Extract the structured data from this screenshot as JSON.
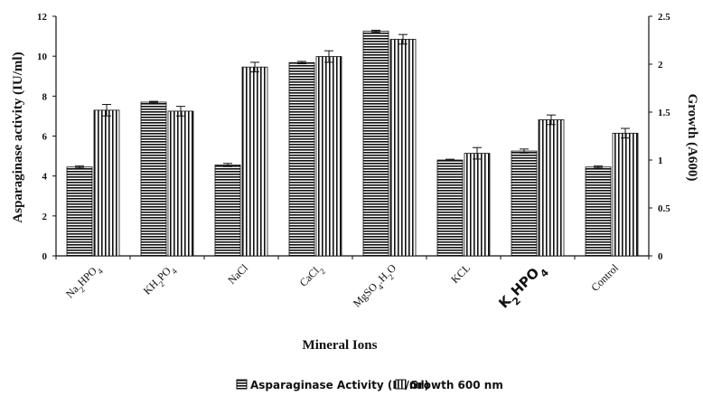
{
  "chart_data": {
    "type": "bar",
    "xlabel": "Mineral Ions",
    "ylabel": "Asparaginase activity (IU/ml)",
    "y2label": "Growth (A600)",
    "categories": [
      {
        "base": "Na",
        "sub1": "2",
        "mid": "HPO",
        "sub2": "4",
        "full": "Na2HPO4"
      },
      {
        "base": "KH",
        "sub1": "2",
        "mid": "PO",
        "sub2": "4",
        "full": "KH2PO4"
      },
      {
        "base": "NaCl",
        "sub1": "",
        "mid": "",
        "sub2": "",
        "full": "NaCl"
      },
      {
        "base": "CaCl",
        "sub1": "2",
        "mid": "",
        "sub2": "",
        "full": "CaCl2"
      },
      {
        "base": "MgSO",
        "sub1": "4",
        "mid": ".H",
        "sub2": "2",
        "tail": "O",
        "full": "MgSO4.H2O"
      },
      {
        "base": "KCL",
        "sub1": "",
        "mid": "",
        "sub2": "",
        "full": "KCL"
      },
      {
        "base": "K",
        "sub1": "2",
        "mid": "HPO",
        "sub2": "4",
        "full": "K2HPO4",
        "bold": true
      },
      {
        "base": "Control",
        "sub1": "",
        "mid": "",
        "sub2": "",
        "full": "Control"
      }
    ],
    "series": [
      {
        "name": "Asparaginase Activity (IU/ml)",
        "axis": "left",
        "pattern": "horizontal-stripes",
        "values": [
          4.45,
          7.7,
          4.55,
          9.68,
          11.25,
          4.8,
          5.25,
          4.45
        ],
        "errors": [
          0.05,
          0.04,
          0.08,
          0.06,
          0.05,
          0.04,
          0.1,
          0.05
        ]
      },
      {
        "name": "Growth 600 nm",
        "axis": "right",
        "pattern": "vertical-stripes",
        "values": [
          1.52,
          1.51,
          1.97,
          2.08,
          2.26,
          1.07,
          1.42,
          1.28
        ],
        "errors": [
          0.06,
          0.05,
          0.05,
          0.06,
          0.05,
          0.06,
          0.05,
          0.05
        ]
      }
    ],
    "ylim": [
      0,
      12
    ],
    "y2lim": [
      0,
      2.5
    ],
    "yticks": [
      "0",
      "2",
      "4",
      "6",
      "8",
      "10",
      "12"
    ],
    "y2ticks": [
      "0",
      "0.5",
      "1",
      "1.5",
      "2",
      "2.5"
    ],
    "grid": false,
    "legend_position": "bottom"
  },
  "colors": {
    "bar_stroke": "#111111",
    "stripe": "#111111",
    "background": "#ffffff"
  }
}
